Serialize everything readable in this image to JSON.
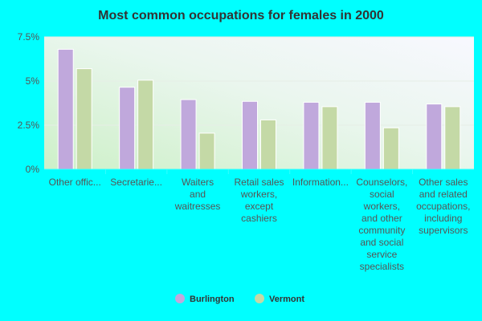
{
  "chart_data": {
    "type": "bar",
    "title": "Most common occupations for females in 2000",
    "xlabel": "",
    "ylabel": "",
    "ylim": [
      0,
      7.5
    ],
    "yticks": [
      "0%",
      "2.5%",
      "5%",
      "7.5%"
    ],
    "ytick_values": [
      0,
      2.5,
      5,
      7.5
    ],
    "grid": true,
    "legend_position": "bottom",
    "categories": [
      [
        "Other offic..."
      ],
      [
        "Secretarie..."
      ],
      [
        "Waiters",
        "and",
        "waitresses"
      ],
      [
        "Retail sales",
        "workers,",
        "except",
        "cashiers"
      ],
      [
        "Information..."
      ],
      [
        "Counselors,",
        "social",
        "workers,",
        "and other",
        "community",
        "and social",
        "service",
        "specialists"
      ],
      [
        "Other sales",
        "and related",
        "occupations,",
        "including",
        "supervisors"
      ]
    ],
    "series": [
      {
        "name": "Burlington",
        "color": "#c0a8dc",
        "values": [
          6.8,
          4.65,
          3.95,
          3.85,
          3.8,
          3.8,
          3.7
        ]
      },
      {
        "name": "Vermont",
        "color": "#c4d9a6",
        "values": [
          5.7,
          5.05,
          2.05,
          2.8,
          3.55,
          2.35,
          3.55
        ]
      }
    ]
  },
  "legend": [
    {
      "label": "Burlington",
      "color": "#c0a8dc"
    },
    {
      "label": "Vermont",
      "color": "#c4d9a6"
    }
  ]
}
